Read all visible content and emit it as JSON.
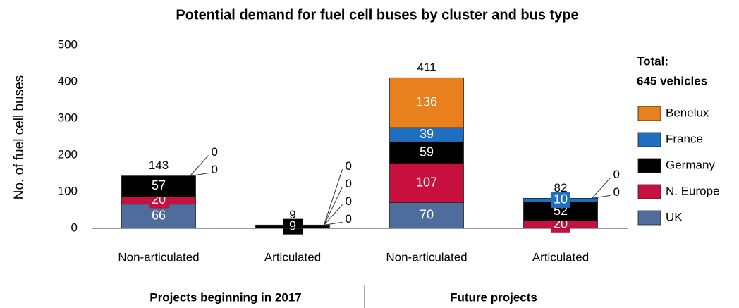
{
  "chart_data": {
    "type": "stacked_bar",
    "title": "Potential demand for fuel cell buses by cluster and bus type",
    "y_label": "No. of fuel cell buses",
    "categories": [
      "Non-articulated",
      "Articulated",
      "Non-articulated",
      "Articulated"
    ],
    "groups": [
      {
        "label": "Projects beginning in 2017",
        "categories": [
          0,
          1
        ]
      },
      {
        "label": "Future projects",
        "categories": [
          2,
          3
        ]
      }
    ],
    "series": [
      {
        "name": "UK",
        "color": "#4e6d9d",
        "values": [
          66,
          0,
          70,
          0
        ]
      },
      {
        "name": "N. Europe",
        "color": "#c8103e",
        "values": [
          20,
          0,
          107,
          20
        ]
      },
      {
        "name": "Germany",
        "color": "#000000",
        "values": [
          57,
          9,
          59,
          52
        ]
      },
      {
        "name": "France",
        "color": "#1f6fc0",
        "values": [
          0,
          0,
          39,
          10
        ]
      },
      {
        "name": "Benelux",
        "color": "#e8801e",
        "values": [
          0,
          0,
          136,
          0
        ]
      }
    ],
    "totals": [
      143,
      9,
      411,
      82
    ],
    "legend_title": [
      "Total:",
      "645 vehicles"
    ],
    "ylim": [
      0,
      500
    ],
    "yticks": [
      0,
      100,
      200,
      300,
      400,
      500
    ],
    "legend": "right"
  }
}
